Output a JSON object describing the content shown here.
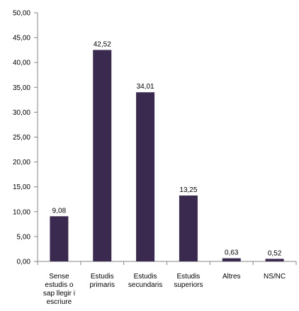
{
  "chart_data": {
    "type": "bar",
    "categories": [
      [
        "Sense",
        "estudis o",
        "sap llegir i",
        "escriure"
      ],
      [
        "Estudis",
        "primaris"
      ],
      [
        "Estudis",
        "secundaris"
      ],
      [
        "Estudis",
        "superiors"
      ],
      [
        "Altres"
      ],
      [
        "NS/NC"
      ]
    ],
    "values": [
      9.08,
      42.52,
      34.01,
      13.25,
      0.63,
      0.52
    ],
    "value_labels": [
      "9,08",
      "42,52",
      "34,01",
      "13,25",
      "0,63",
      "0,52"
    ],
    "ylim": [
      0,
      50
    ],
    "yticks": [
      0,
      5,
      10,
      15,
      20,
      25,
      30,
      35,
      40,
      45,
      50
    ],
    "ytick_labels": [
      "0,00",
      "5,00",
      "10,00",
      "15,00",
      "20,00",
      "25,00",
      "30,00",
      "35,00",
      "40,00",
      "45,00",
      "50,00"
    ],
    "grid": false,
    "legend": "none",
    "bar_color": "#3b2a4f",
    "axis_color": "#868686"
  }
}
